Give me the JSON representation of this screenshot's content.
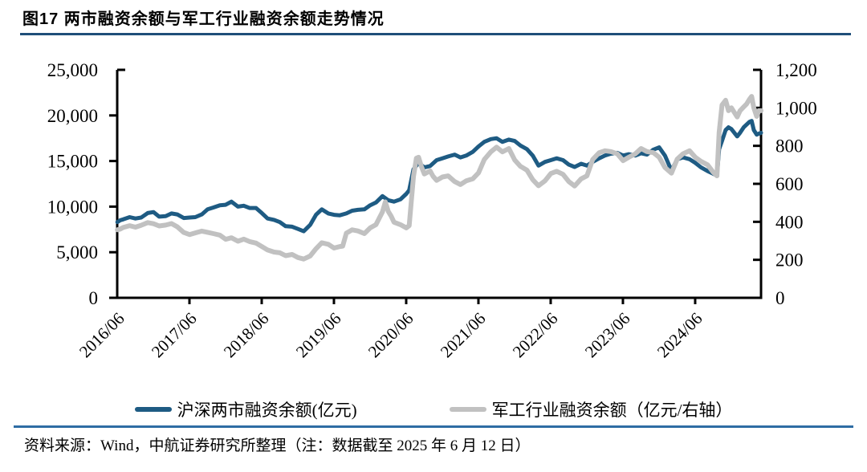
{
  "title": "图17 两市融资余额与军工行业融资余额走势情况",
  "source_note": "资料来源：Wind，中航证券研究所整理（注：数据截至 2025 年 6 月 12 日）",
  "colors": {
    "title_rule": "#1f4e79",
    "footer_rule": "#2e6da4",
    "axis": "#000000",
    "series_blue": "#1e5b83",
    "series_gray": "#c1c1c1"
  },
  "chart_data": {
    "type": "line",
    "title": "图17 两市融资余额与军工行业融资余额走势情况",
    "legend_position": "bottom",
    "grid": false,
    "x_axis": {
      "range": [
        2016.4583,
        2025.37
      ],
      "tick_years": [
        2016.4583,
        2017.4583,
        2018.4583,
        2019.4583,
        2020.4583,
        2021.4583,
        2022.4583,
        2023.4583,
        2024.4583
      ],
      "tick_labels": [
        "2016/06",
        "2017/06",
        "2018/06",
        "2019/06",
        "2020/06",
        "2021/06",
        "2022/06",
        "2023/06",
        "2024/06"
      ]
    },
    "left_axis": {
      "range": [
        0,
        25000
      ],
      "ticks": [
        0,
        5000,
        10000,
        15000,
        20000,
        25000
      ],
      "tick_labels": [
        "0",
        "5,000",
        "10,000",
        "15,000",
        "20,000",
        "25,000"
      ]
    },
    "right_axis": {
      "range": [
        0,
        1200
      ],
      "ticks": [
        0,
        200,
        400,
        600,
        800,
        1000,
        1200
      ],
      "tick_labels": [
        "0",
        "200",
        "400",
        "600",
        "800",
        "1,000",
        "1,200"
      ]
    },
    "series": [
      {
        "name": "沪深两市融资余额(亿元)",
        "axis": "left",
        "color": "#1e5b83",
        "stroke_width": 5,
        "points": [
          [
            2016.46,
            8300
          ],
          [
            2016.5,
            8500
          ],
          [
            2016.54,
            8600
          ],
          [
            2016.63,
            8850
          ],
          [
            2016.71,
            8700
          ],
          [
            2016.79,
            8800
          ],
          [
            2016.88,
            9300
          ],
          [
            2016.96,
            9400
          ],
          [
            2017.04,
            8900
          ],
          [
            2017.13,
            8950
          ],
          [
            2017.21,
            9250
          ],
          [
            2017.29,
            9150
          ],
          [
            2017.38,
            8750
          ],
          [
            2017.46,
            8800
          ],
          [
            2017.54,
            8850
          ],
          [
            2017.63,
            9150
          ],
          [
            2017.71,
            9700
          ],
          [
            2017.79,
            9900
          ],
          [
            2017.88,
            10150
          ],
          [
            2017.96,
            10200
          ],
          [
            2018.04,
            10550
          ],
          [
            2018.13,
            10000
          ],
          [
            2018.21,
            10100
          ],
          [
            2018.29,
            9850
          ],
          [
            2018.38,
            9850
          ],
          [
            2018.46,
            9300
          ],
          [
            2018.54,
            8700
          ],
          [
            2018.63,
            8550
          ],
          [
            2018.71,
            8300
          ],
          [
            2018.79,
            7850
          ],
          [
            2018.88,
            7800
          ],
          [
            2018.96,
            7550
          ],
          [
            2019.04,
            7300
          ],
          [
            2019.13,
            8000
          ],
          [
            2019.21,
            9100
          ],
          [
            2019.29,
            9700
          ],
          [
            2019.38,
            9250
          ],
          [
            2019.46,
            9100
          ],
          [
            2019.54,
            9050
          ],
          [
            2019.63,
            9250
          ],
          [
            2019.71,
            9550
          ],
          [
            2019.79,
            9650
          ],
          [
            2019.88,
            9700
          ],
          [
            2019.96,
            10150
          ],
          [
            2020.04,
            10450
          ],
          [
            2020.13,
            11150
          ],
          [
            2020.21,
            10700
          ],
          [
            2020.29,
            10550
          ],
          [
            2020.38,
            10800
          ],
          [
            2020.46,
            11400
          ],
          [
            2020.5,
            11800
          ],
          [
            2020.56,
            14100
          ],
          [
            2020.63,
            14800
          ],
          [
            2020.71,
            14300
          ],
          [
            2020.79,
            14450
          ],
          [
            2020.88,
            15100
          ],
          [
            2020.96,
            15300
          ],
          [
            2021.04,
            15500
          ],
          [
            2021.13,
            15700
          ],
          [
            2021.21,
            15400
          ],
          [
            2021.29,
            15600
          ],
          [
            2021.38,
            16000
          ],
          [
            2021.46,
            16600
          ],
          [
            2021.54,
            17100
          ],
          [
            2021.63,
            17400
          ],
          [
            2021.71,
            17500
          ],
          [
            2021.79,
            17100
          ],
          [
            2021.88,
            17350
          ],
          [
            2021.96,
            17200
          ],
          [
            2022.04,
            16700
          ],
          [
            2022.13,
            16300
          ],
          [
            2022.21,
            15600
          ],
          [
            2022.29,
            14500
          ],
          [
            2022.38,
            14900
          ],
          [
            2022.46,
            15100
          ],
          [
            2022.54,
            15300
          ],
          [
            2022.63,
            15100
          ],
          [
            2022.71,
            14600
          ],
          [
            2022.79,
            14350
          ],
          [
            2022.88,
            14700
          ],
          [
            2022.96,
            14500
          ],
          [
            2023.04,
            14900
          ],
          [
            2023.13,
            15300
          ],
          [
            2023.21,
            15600
          ],
          [
            2023.29,
            15800
          ],
          [
            2023.38,
            15900
          ],
          [
            2023.46,
            15600
          ],
          [
            2023.54,
            15750
          ],
          [
            2023.63,
            15600
          ],
          [
            2023.71,
            15850
          ],
          [
            2023.79,
            15700
          ],
          [
            2023.88,
            16250
          ],
          [
            2023.96,
            16500
          ],
          [
            2024.04,
            15600
          ],
          [
            2024.13,
            13950
          ],
          [
            2024.21,
            15200
          ],
          [
            2024.29,
            15400
          ],
          [
            2024.38,
            15200
          ],
          [
            2024.46,
            14800
          ],
          [
            2024.54,
            14300
          ],
          [
            2024.63,
            13900
          ],
          [
            2024.71,
            13600
          ],
          [
            2024.76,
            13400
          ],
          [
            2024.79,
            16300
          ],
          [
            2024.83,
            17200
          ],
          [
            2024.88,
            18400
          ],
          [
            2024.92,
            18700
          ],
          [
            2024.96,
            18500
          ],
          [
            2025.04,
            17700
          ],
          [
            2025.08,
            18100
          ],
          [
            2025.13,
            18700
          ],
          [
            2025.17,
            19000
          ],
          [
            2025.21,
            19300
          ],
          [
            2025.24,
            19400
          ],
          [
            2025.27,
            18400
          ],
          [
            2025.31,
            17900
          ],
          [
            2025.34,
            18000
          ],
          [
            2025.37,
            18100
          ]
        ]
      },
      {
        "name": "军工行业融资余额（亿元/右轴）",
        "axis": "right",
        "color": "#c1c1c1",
        "stroke_width": 6,
        "points": [
          [
            2016.46,
            358
          ],
          [
            2016.5,
            362
          ],
          [
            2016.54,
            370
          ],
          [
            2016.63,
            380
          ],
          [
            2016.71,
            372
          ],
          [
            2016.79,
            382
          ],
          [
            2016.88,
            396
          ],
          [
            2016.96,
            390
          ],
          [
            2017.04,
            378
          ],
          [
            2017.13,
            383
          ],
          [
            2017.21,
            391
          ],
          [
            2017.29,
            374
          ],
          [
            2017.38,
            344
          ],
          [
            2017.46,
            333
          ],
          [
            2017.54,
            342
          ],
          [
            2017.63,
            351
          ],
          [
            2017.71,
            345
          ],
          [
            2017.79,
            338
          ],
          [
            2017.88,
            330
          ],
          [
            2017.96,
            308
          ],
          [
            2018.04,
            316
          ],
          [
            2018.13,
            298
          ],
          [
            2018.21,
            309
          ],
          [
            2018.29,
            296
          ],
          [
            2018.38,
            288
          ],
          [
            2018.46,
            270
          ],
          [
            2018.54,
            252
          ],
          [
            2018.63,
            241
          ],
          [
            2018.71,
            237
          ],
          [
            2018.79,
            222
          ],
          [
            2018.88,
            228
          ],
          [
            2018.96,
            212
          ],
          [
            2019.04,
            204
          ],
          [
            2019.13,
            220
          ],
          [
            2019.21,
            258
          ],
          [
            2019.29,
            290
          ],
          [
            2019.38,
            282
          ],
          [
            2019.46,
            262
          ],
          [
            2019.54,
            270
          ],
          [
            2019.58,
            272
          ],
          [
            2019.63,
            340
          ],
          [
            2019.71,
            358
          ],
          [
            2019.79,
            352
          ],
          [
            2019.88,
            338
          ],
          [
            2019.96,
            368
          ],
          [
            2020.04,
            385
          ],
          [
            2020.13,
            452
          ],
          [
            2020.17,
            505
          ],
          [
            2020.21,
            455
          ],
          [
            2020.25,
            430
          ],
          [
            2020.29,
            398
          ],
          [
            2020.38,
            385
          ],
          [
            2020.46,
            368
          ],
          [
            2020.5,
            380
          ],
          [
            2020.56,
            640
          ],
          [
            2020.6,
            735
          ],
          [
            2020.63,
            740
          ],
          [
            2020.67,
            690
          ],
          [
            2020.71,
            652
          ],
          [
            2020.79,
            668
          ],
          [
            2020.83,
            640
          ],
          [
            2020.88,
            618
          ],
          [
            2020.96,
            636
          ],
          [
            2021.04,
            642
          ],
          [
            2021.13,
            612
          ],
          [
            2021.21,
            596
          ],
          [
            2021.29,
            616
          ],
          [
            2021.38,
            626
          ],
          [
            2021.46,
            658
          ],
          [
            2021.54,
            728
          ],
          [
            2021.63,
            768
          ],
          [
            2021.71,
            793
          ],
          [
            2021.79,
            768
          ],
          [
            2021.88,
            786
          ],
          [
            2021.96,
            726
          ],
          [
            2022.04,
            692
          ],
          [
            2022.13,
            672
          ],
          [
            2022.21,
            622
          ],
          [
            2022.29,
            590
          ],
          [
            2022.38,
            616
          ],
          [
            2022.46,
            654
          ],
          [
            2022.54,
            666
          ],
          [
            2022.63,
            650
          ],
          [
            2022.71,
            612
          ],
          [
            2022.79,
            588
          ],
          [
            2022.88,
            626
          ],
          [
            2022.96,
            642
          ],
          [
            2023.04,
            728
          ],
          [
            2023.13,
            764
          ],
          [
            2023.21,
            774
          ],
          [
            2023.29,
            770
          ],
          [
            2023.38,
            758
          ],
          [
            2023.46,
            722
          ],
          [
            2023.54,
            740
          ],
          [
            2023.63,
            758
          ],
          [
            2023.71,
            786
          ],
          [
            2023.79,
            770
          ],
          [
            2023.88,
            764
          ],
          [
            2023.96,
            740
          ],
          [
            2024.04,
            686
          ],
          [
            2024.13,
            656
          ],
          [
            2024.21,
            730
          ],
          [
            2024.29,
            758
          ],
          [
            2024.38,
            774
          ],
          [
            2024.46,
            740
          ],
          [
            2024.54,
            718
          ],
          [
            2024.63,
            700
          ],
          [
            2024.71,
            660
          ],
          [
            2024.76,
            642
          ],
          [
            2024.79,
            870
          ],
          [
            2024.83,
            1015
          ],
          [
            2024.88,
            1040
          ],
          [
            2024.92,
            985
          ],
          [
            2024.96,
            1000
          ],
          [
            2025.04,
            952
          ],
          [
            2025.08,
            985
          ],
          [
            2025.13,
            1005
          ],
          [
            2025.17,
            1020
          ],
          [
            2025.21,
            1045
          ],
          [
            2025.24,
            1060
          ],
          [
            2025.27,
            1000
          ],
          [
            2025.31,
            955
          ],
          [
            2025.34,
            985
          ],
          [
            2025.37,
            985
          ]
        ]
      }
    ]
  }
}
